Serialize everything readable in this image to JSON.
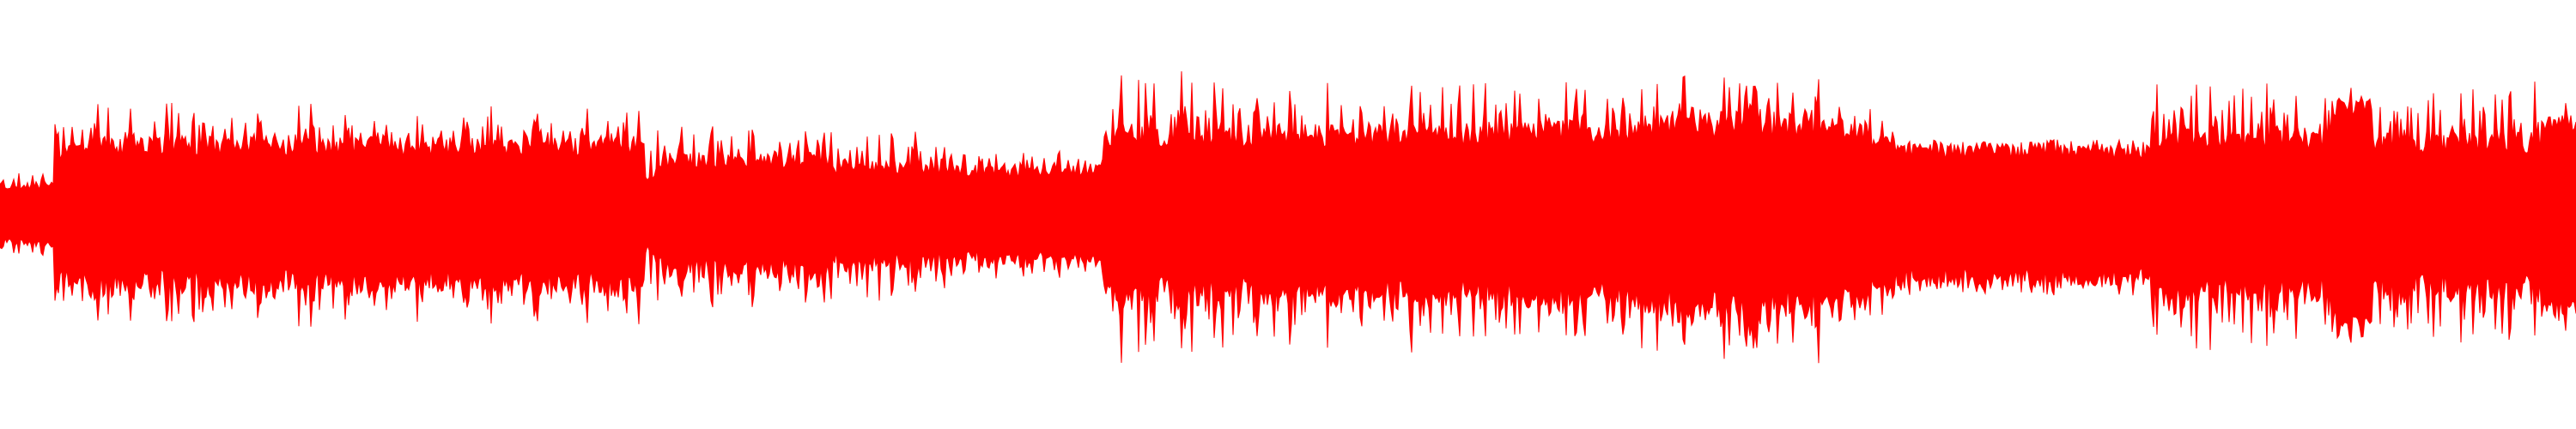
{
  "waveform": {
    "color": "#ff0000",
    "background": "#ffffff",
    "segments": [
      {
        "from": 0.0,
        "to": 0.021,
        "base": 0.16,
        "spike": 0.24
      },
      {
        "from": 0.021,
        "to": 0.031,
        "base": 0.36,
        "spike": 0.52
      },
      {
        "from": 0.031,
        "to": 0.135,
        "base": 0.38,
        "spike": 0.62
      },
      {
        "from": 0.135,
        "to": 0.17,
        "base": 0.38,
        "spike": 0.58
      },
      {
        "from": 0.17,
        "to": 0.25,
        "base": 0.38,
        "spike": 0.6
      },
      {
        "from": 0.25,
        "to": 0.255,
        "base": 0.2,
        "spike": 0.4
      },
      {
        "from": 0.255,
        "to": 0.32,
        "base": 0.3,
        "spike": 0.5
      },
      {
        "from": 0.32,
        "to": 0.36,
        "base": 0.26,
        "spike": 0.46
      },
      {
        "from": 0.36,
        "to": 0.4,
        "base": 0.24,
        "spike": 0.4
      },
      {
        "from": 0.4,
        "to": 0.428,
        "base": 0.24,
        "spike": 0.36
      },
      {
        "from": 0.428,
        "to": 0.5,
        "base": 0.44,
        "spike": 0.8
      },
      {
        "from": 0.5,
        "to": 0.58,
        "base": 0.44,
        "spike": 0.74
      },
      {
        "from": 0.58,
        "to": 0.64,
        "base": 0.46,
        "spike": 0.74
      },
      {
        "from": 0.64,
        "to": 0.675,
        "base": 0.5,
        "spike": 0.78
      },
      {
        "from": 0.675,
        "to": 0.72,
        "base": 0.48,
        "spike": 0.78
      },
      {
        "from": 0.72,
        "to": 0.737,
        "base": 0.4,
        "spike": 0.6
      },
      {
        "from": 0.737,
        "to": 0.835,
        "base": 0.36,
        "spike": 0.42
      },
      {
        "from": 0.835,
        "to": 0.905,
        "base": 0.42,
        "spike": 0.74
      },
      {
        "from": 0.905,
        "to": 0.92,
        "base": 0.62,
        "spike": 0.64
      },
      {
        "from": 0.92,
        "to": 0.986,
        "base": 0.4,
        "spike": 0.74
      },
      {
        "from": 0.986,
        "to": 1.0,
        "base": 0.54,
        "spike": 0.56
      }
    ]
  }
}
